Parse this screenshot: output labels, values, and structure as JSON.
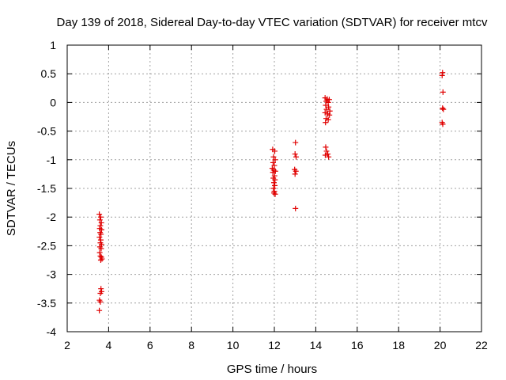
{
  "chart_data": {
    "type": "scatter",
    "title": "Day 139 of 2018, Sidereal Day-to-day VTEC variation (SDTVAR) for receiver mtcv",
    "xlabel": "GPS time / hours",
    "ylabel": "SDTVAR / TECUs",
    "xlim": [
      2,
      22
    ],
    "ylim": [
      -4,
      1
    ],
    "xticks": [
      2,
      4,
      6,
      8,
      10,
      12,
      14,
      16,
      18,
      20,
      22
    ],
    "xtick_labels": [
      "2",
      "4",
      "6",
      "8",
      "10",
      "12",
      "14",
      "16",
      "18",
      "20",
      "22"
    ],
    "yticks": [
      1,
      0.5,
      0,
      -0.5,
      -1,
      -1.5,
      -2,
      -2.5,
      -3,
      -3.5,
      -4
    ],
    "ytick_labels": [
      "1",
      "0.5",
      "0",
      "-0.5",
      "-1",
      "-1.5",
      "-2",
      "-2.5",
      "-3",
      "-3.5",
      "-4"
    ],
    "grid": true,
    "marker": "+",
    "series": [
      {
        "name": "SDTVAR",
        "color": "#e00000",
        "points": [
          [
            3.55,
            -1.95
          ],
          [
            3.62,
            -2.0
          ],
          [
            3.58,
            -2.05
          ],
          [
            3.65,
            -2.1
          ],
          [
            3.6,
            -2.15
          ],
          [
            3.57,
            -2.2
          ],
          [
            3.66,
            -2.22
          ],
          [
            3.59,
            -2.27
          ],
          [
            3.63,
            -2.3
          ],
          [
            3.56,
            -2.35
          ],
          [
            3.62,
            -2.4
          ],
          [
            3.6,
            -2.45
          ],
          [
            3.66,
            -2.48
          ],
          [
            3.58,
            -2.52
          ],
          [
            3.64,
            -2.55
          ],
          [
            3.57,
            -2.62
          ],
          [
            3.6,
            -2.68
          ],
          [
            3.65,
            -2.7
          ],
          [
            3.62,
            -2.75
          ],
          [
            3.68,
            -2.73
          ],
          [
            3.63,
            -3.25
          ],
          [
            3.66,
            -3.3
          ],
          [
            3.6,
            -3.33
          ],
          [
            3.56,
            -3.45
          ],
          [
            3.6,
            -3.48
          ],
          [
            3.55,
            -3.63
          ],
          [
            11.92,
            -0.82
          ],
          [
            12.02,
            -0.85
          ],
          [
            11.96,
            -0.95
          ],
          [
            12.04,
            -1.0
          ],
          [
            11.94,
            -1.05
          ],
          [
            12.0,
            -1.1
          ],
          [
            11.9,
            -1.15
          ],
          [
            11.97,
            -1.18
          ],
          [
            12.05,
            -1.2
          ],
          [
            11.93,
            -1.22
          ],
          [
            12.01,
            -1.28
          ],
          [
            11.95,
            -1.32
          ],
          [
            12.03,
            -1.35
          ],
          [
            11.98,
            -1.4
          ],
          [
            12.02,
            -1.45
          ],
          [
            11.96,
            -1.5
          ],
          [
            12.0,
            -1.55
          ],
          [
            11.98,
            -1.58
          ],
          [
            12.04,
            -1.6
          ],
          [
            13.02,
            -0.7
          ],
          [
            13.0,
            -0.9
          ],
          [
            13.05,
            -0.95
          ],
          [
            12.98,
            -1.17
          ],
          [
            13.04,
            -1.2
          ],
          [
            13.0,
            -1.25
          ],
          [
            13.02,
            -1.85
          ],
          [
            14.45,
            0.08
          ],
          [
            14.55,
            0.06
          ],
          [
            14.65,
            0.05
          ],
          [
            14.5,
            0.02
          ],
          [
            14.6,
            0.0
          ],
          [
            14.48,
            -0.05
          ],
          [
            14.62,
            -0.08
          ],
          [
            14.52,
            -0.12
          ],
          [
            14.68,
            -0.15
          ],
          [
            14.45,
            -0.18
          ],
          [
            14.58,
            -0.2
          ],
          [
            14.66,
            -0.22
          ],
          [
            14.5,
            -0.28
          ],
          [
            14.6,
            -0.3
          ],
          [
            14.47,
            -0.35
          ],
          [
            14.48,
            -0.78
          ],
          [
            14.52,
            -0.85
          ],
          [
            14.58,
            -0.9
          ],
          [
            14.46,
            -0.92
          ],
          [
            14.62,
            -0.95
          ],
          [
            20.12,
            0.52
          ],
          [
            20.1,
            0.47
          ],
          [
            20.14,
            0.18
          ],
          [
            20.12,
            -0.1
          ],
          [
            20.16,
            -0.12
          ],
          [
            20.1,
            -0.35
          ],
          [
            20.13,
            -0.38
          ]
        ]
      }
    ]
  }
}
